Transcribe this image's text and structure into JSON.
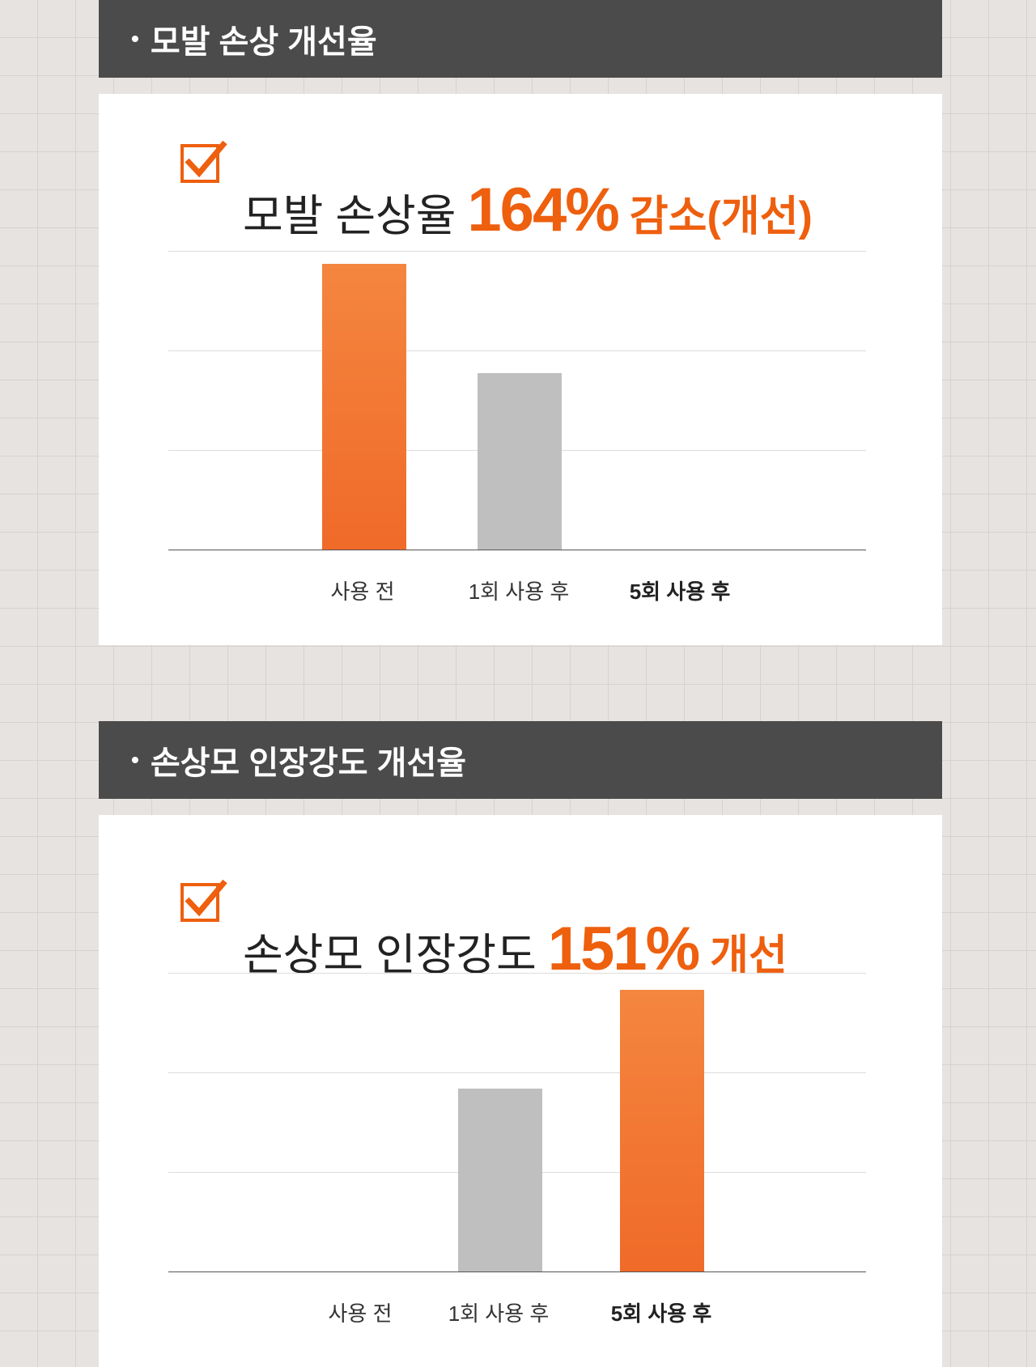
{
  "sections": [
    {
      "header": "모발 손상 개선율",
      "title_plain": "모발 손상율",
      "title_value": "164%",
      "title_suffix": "감소(개선)",
      "chart_data": {
        "type": "bar",
        "categories": [
          "사용 전",
          "1회 사용 후",
          "5회 사용 후"
        ],
        "values": [
          2.87,
          1.77,
          0
        ],
        "highlight": [
          true,
          false,
          false
        ],
        "bold_category": "5회 사용 후",
        "ylim": [
          0,
          3
        ],
        "grid": true
      }
    },
    {
      "header": "손상모 인장강도 개선율",
      "title_plain": "손상모 인장강도",
      "title_value": "151%",
      "title_suffix": "개선",
      "chart_data": {
        "type": "bar",
        "categories": [
          "사용 전",
          "1회 사용 후",
          "5회 사용 후"
        ],
        "values": [
          0,
          1.84,
          2.83
        ],
        "highlight": [
          false,
          false,
          true
        ],
        "bold_category": "5회 사용 후",
        "ylim": [
          0,
          3
        ],
        "grid": true
      }
    }
  ],
  "colors": {
    "accent": "#ee5f0e",
    "bar_highlight": "#f27636",
    "bar_other": "#bfbfbf",
    "header_bg": "#4b4b4b"
  },
  "icons": {
    "title": "checkbox-checked-icon"
  }
}
